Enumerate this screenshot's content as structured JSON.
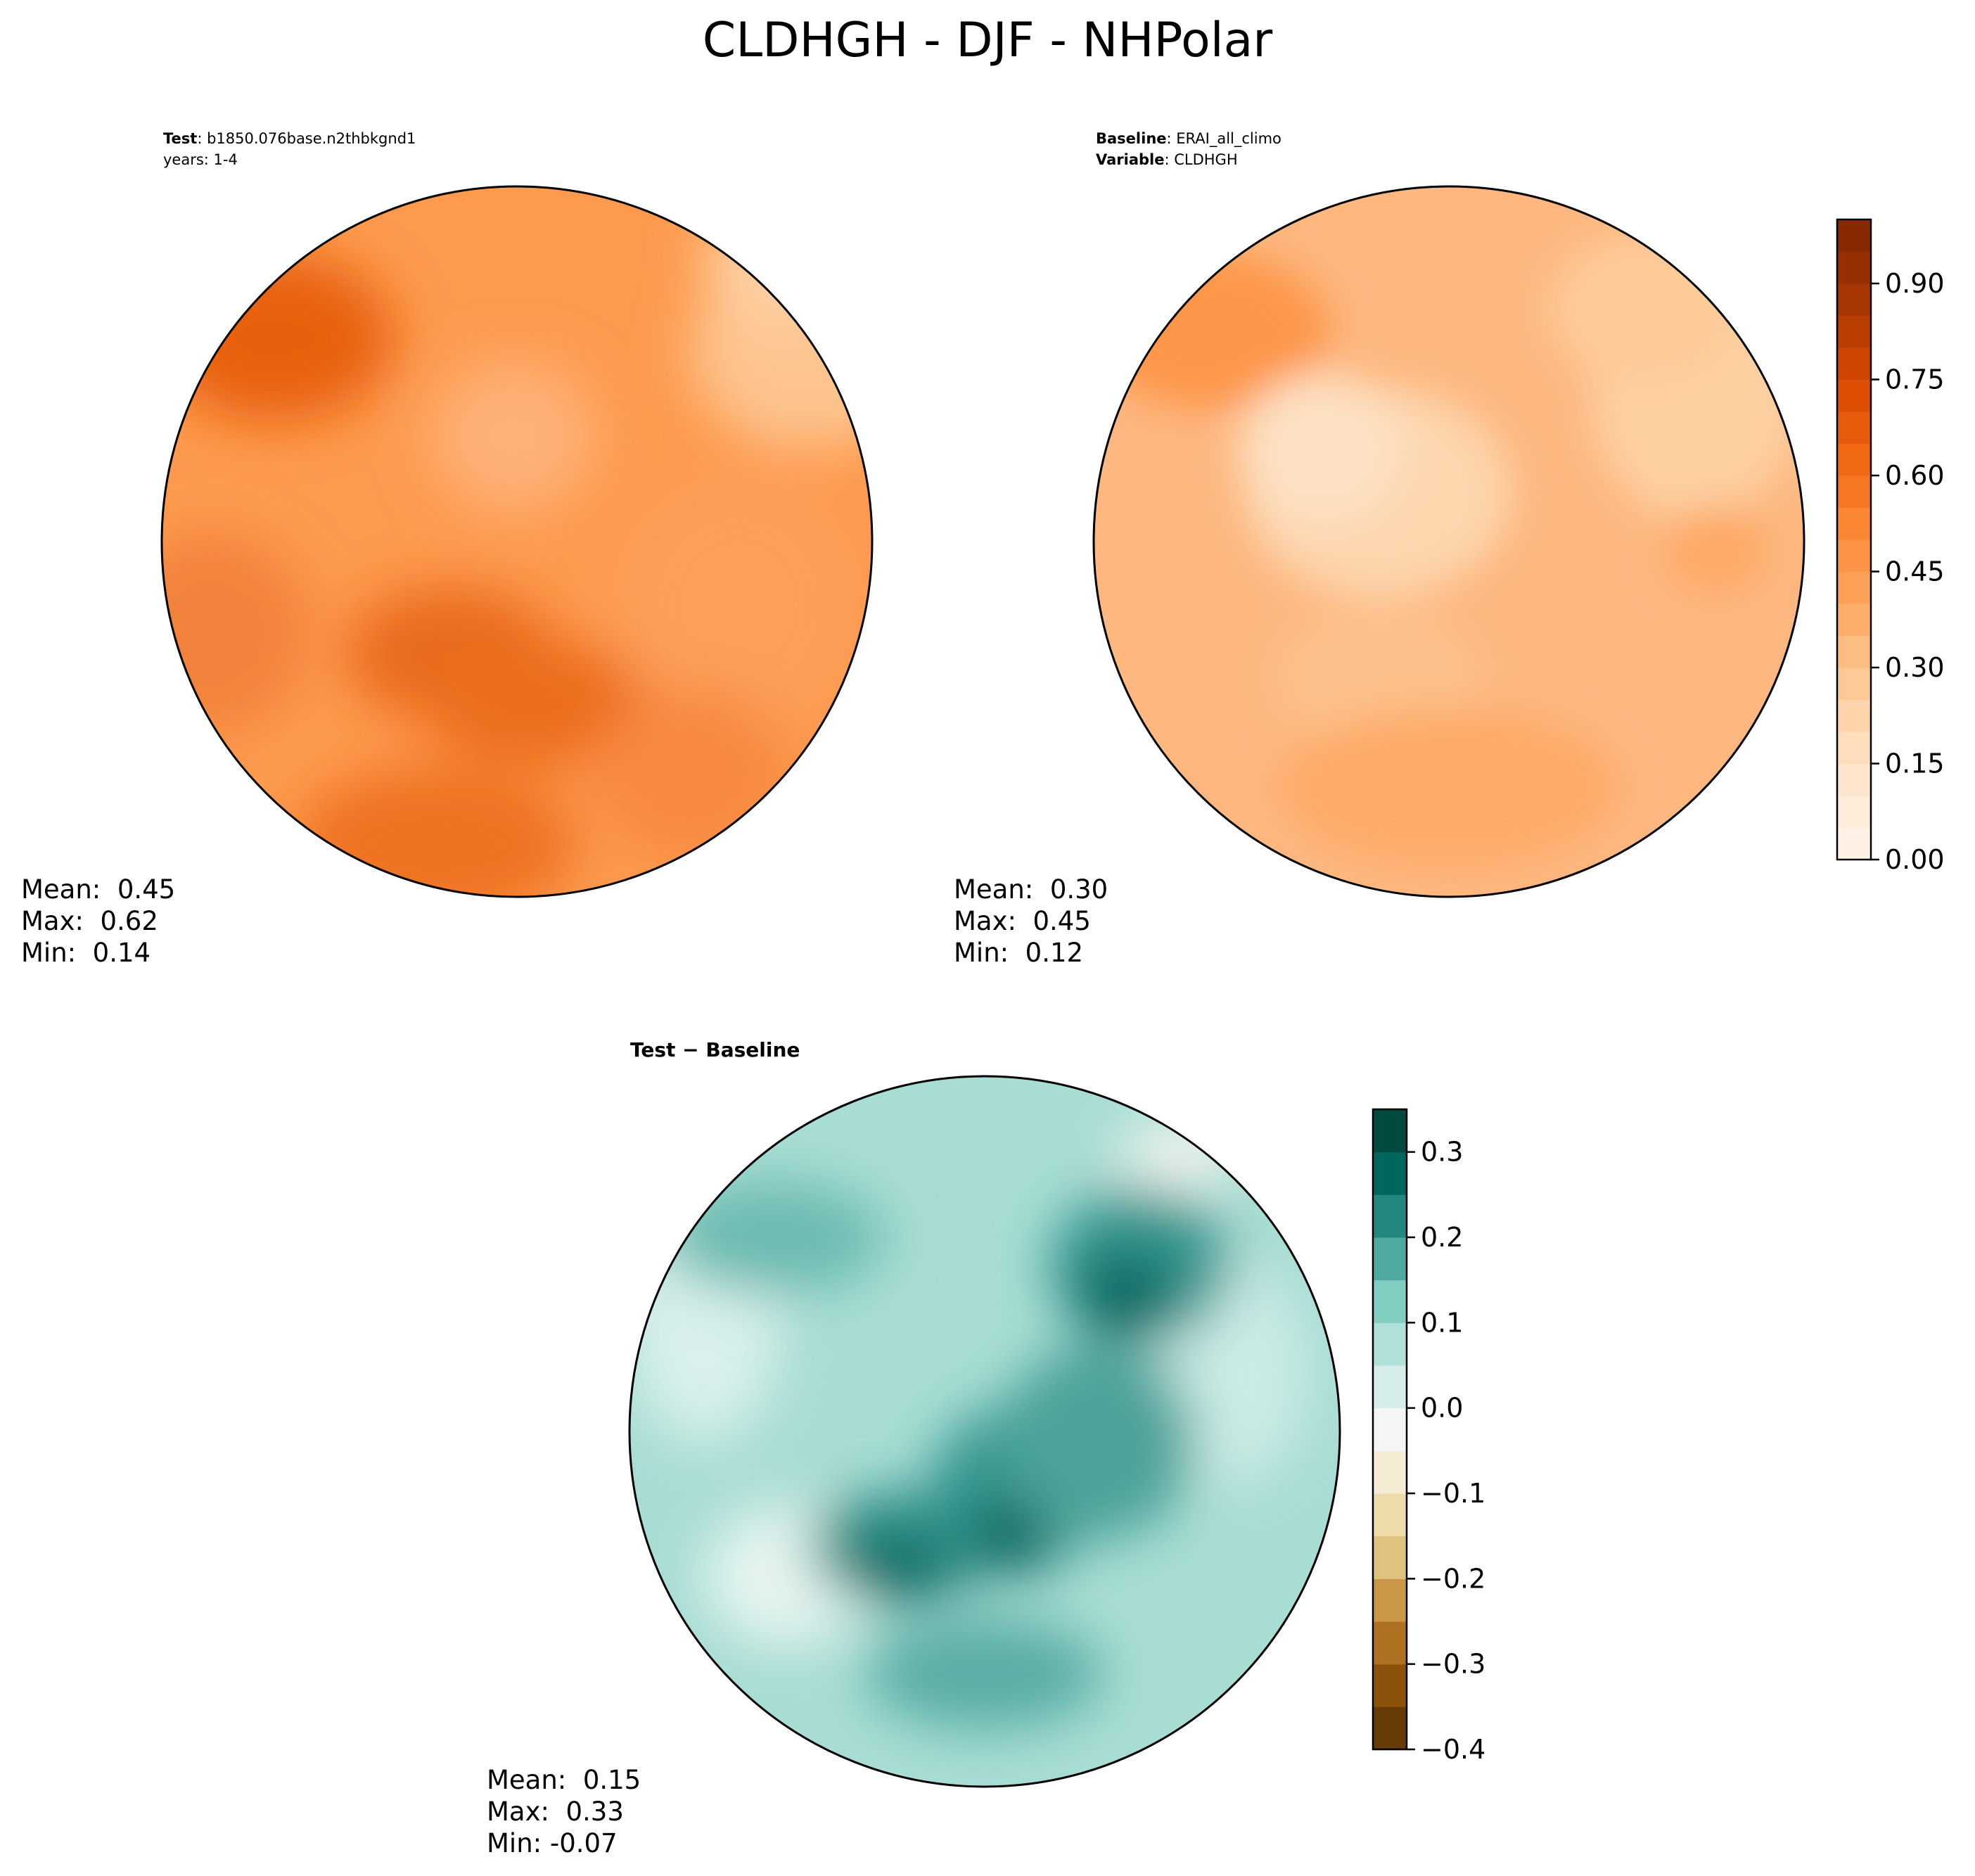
{
  "figure": {
    "title": "CLDHGH - DJF - NHPolar"
  },
  "colors": {
    "oranges": [
      "#fff5eb",
      "#fee6ce",
      "#fdd0a2",
      "#fdae6b",
      "#fd8d3c",
      "#f16913",
      "#d94801",
      "#a63603",
      "#7f2704"
    ],
    "diverging": [
      "#543005",
      "#8c510a",
      "#bf812d",
      "#dfc27d",
      "#f6e8c3",
      "#f5f5f5",
      "#c7eae5",
      "#80cdc1",
      "#35978f",
      "#01665e",
      "#003c30"
    ]
  },
  "panels": {
    "test": {
      "header_key": "Test",
      "header_value": ": b1850.076base.n2thbkgnd1",
      "header_line2": "years: 1-4",
      "mean_label": "Mean:",
      "mean_value": "0.45",
      "max_label": "Max:",
      "max_value": "0.62",
      "min_label": "Min:",
      "min_value": "0.14"
    },
    "baseline": {
      "header_key": "Baseline",
      "header_value": ": ERAI_all_climo",
      "header_key2": "Variable",
      "header_value2": ": CLDHGH",
      "mean_label": "Mean:",
      "mean_value": "0.30",
      "max_label": "Max:",
      "max_value": "0.45",
      "min_label": "Min:",
      "min_value": "0.12"
    },
    "diff": {
      "header": "Test − Baseline",
      "mean_label": "Mean:",
      "mean_value": "0.15",
      "max_label": "Max:",
      "max_value": "0.33",
      "min_label": "Min:",
      "min_value": "-0.07"
    }
  },
  "chart_data": [
    {
      "type": "heatmap",
      "name": "Test",
      "title": "Test : b1850.076base.n2thbkgnd1, years: 1-4",
      "projection": "north polar stereographic",
      "variable": "CLDHGH",
      "season": "DJF",
      "mean": 0.45,
      "max": 0.62,
      "min": 0.14,
      "colorbar": "shared with Baseline"
    },
    {
      "type": "heatmap",
      "name": "Baseline",
      "title": "Baseline : ERAI_all_climo, Variable : CLDHGH",
      "projection": "north polar stereographic",
      "variable": "CLDHGH",
      "season": "DJF",
      "mean": 0.3,
      "max": 0.45,
      "min": 0.12,
      "colorbar": {
        "range": [
          0.0,
          1.0
        ],
        "levels": 20,
        "ticks": [
          0.0,
          0.15,
          0.3,
          0.45,
          0.6,
          0.75,
          0.9
        ],
        "tick_labels": [
          "0.00",
          "0.15",
          "0.30",
          "0.45",
          "0.60",
          "0.75",
          "0.90"
        ]
      }
    },
    {
      "type": "heatmap",
      "name": "Test − Baseline",
      "title": "Test − Baseline",
      "projection": "north polar stereographic",
      "variable": "CLDHGH",
      "season": "DJF",
      "mean": 0.15,
      "max": 0.33,
      "min": -0.07,
      "colorbar": {
        "range": [
          -0.4,
          0.35
        ],
        "level_step": 0.05,
        "ticks": [
          -0.4,
          -0.3,
          -0.2,
          -0.1,
          0.0,
          0.1,
          0.2,
          0.3
        ],
        "tick_labels": [
          "−0.4",
          "−0.3",
          "−0.2",
          "−0.1",
          "0.0",
          "0.1",
          "0.2",
          "0.3"
        ]
      }
    }
  ]
}
